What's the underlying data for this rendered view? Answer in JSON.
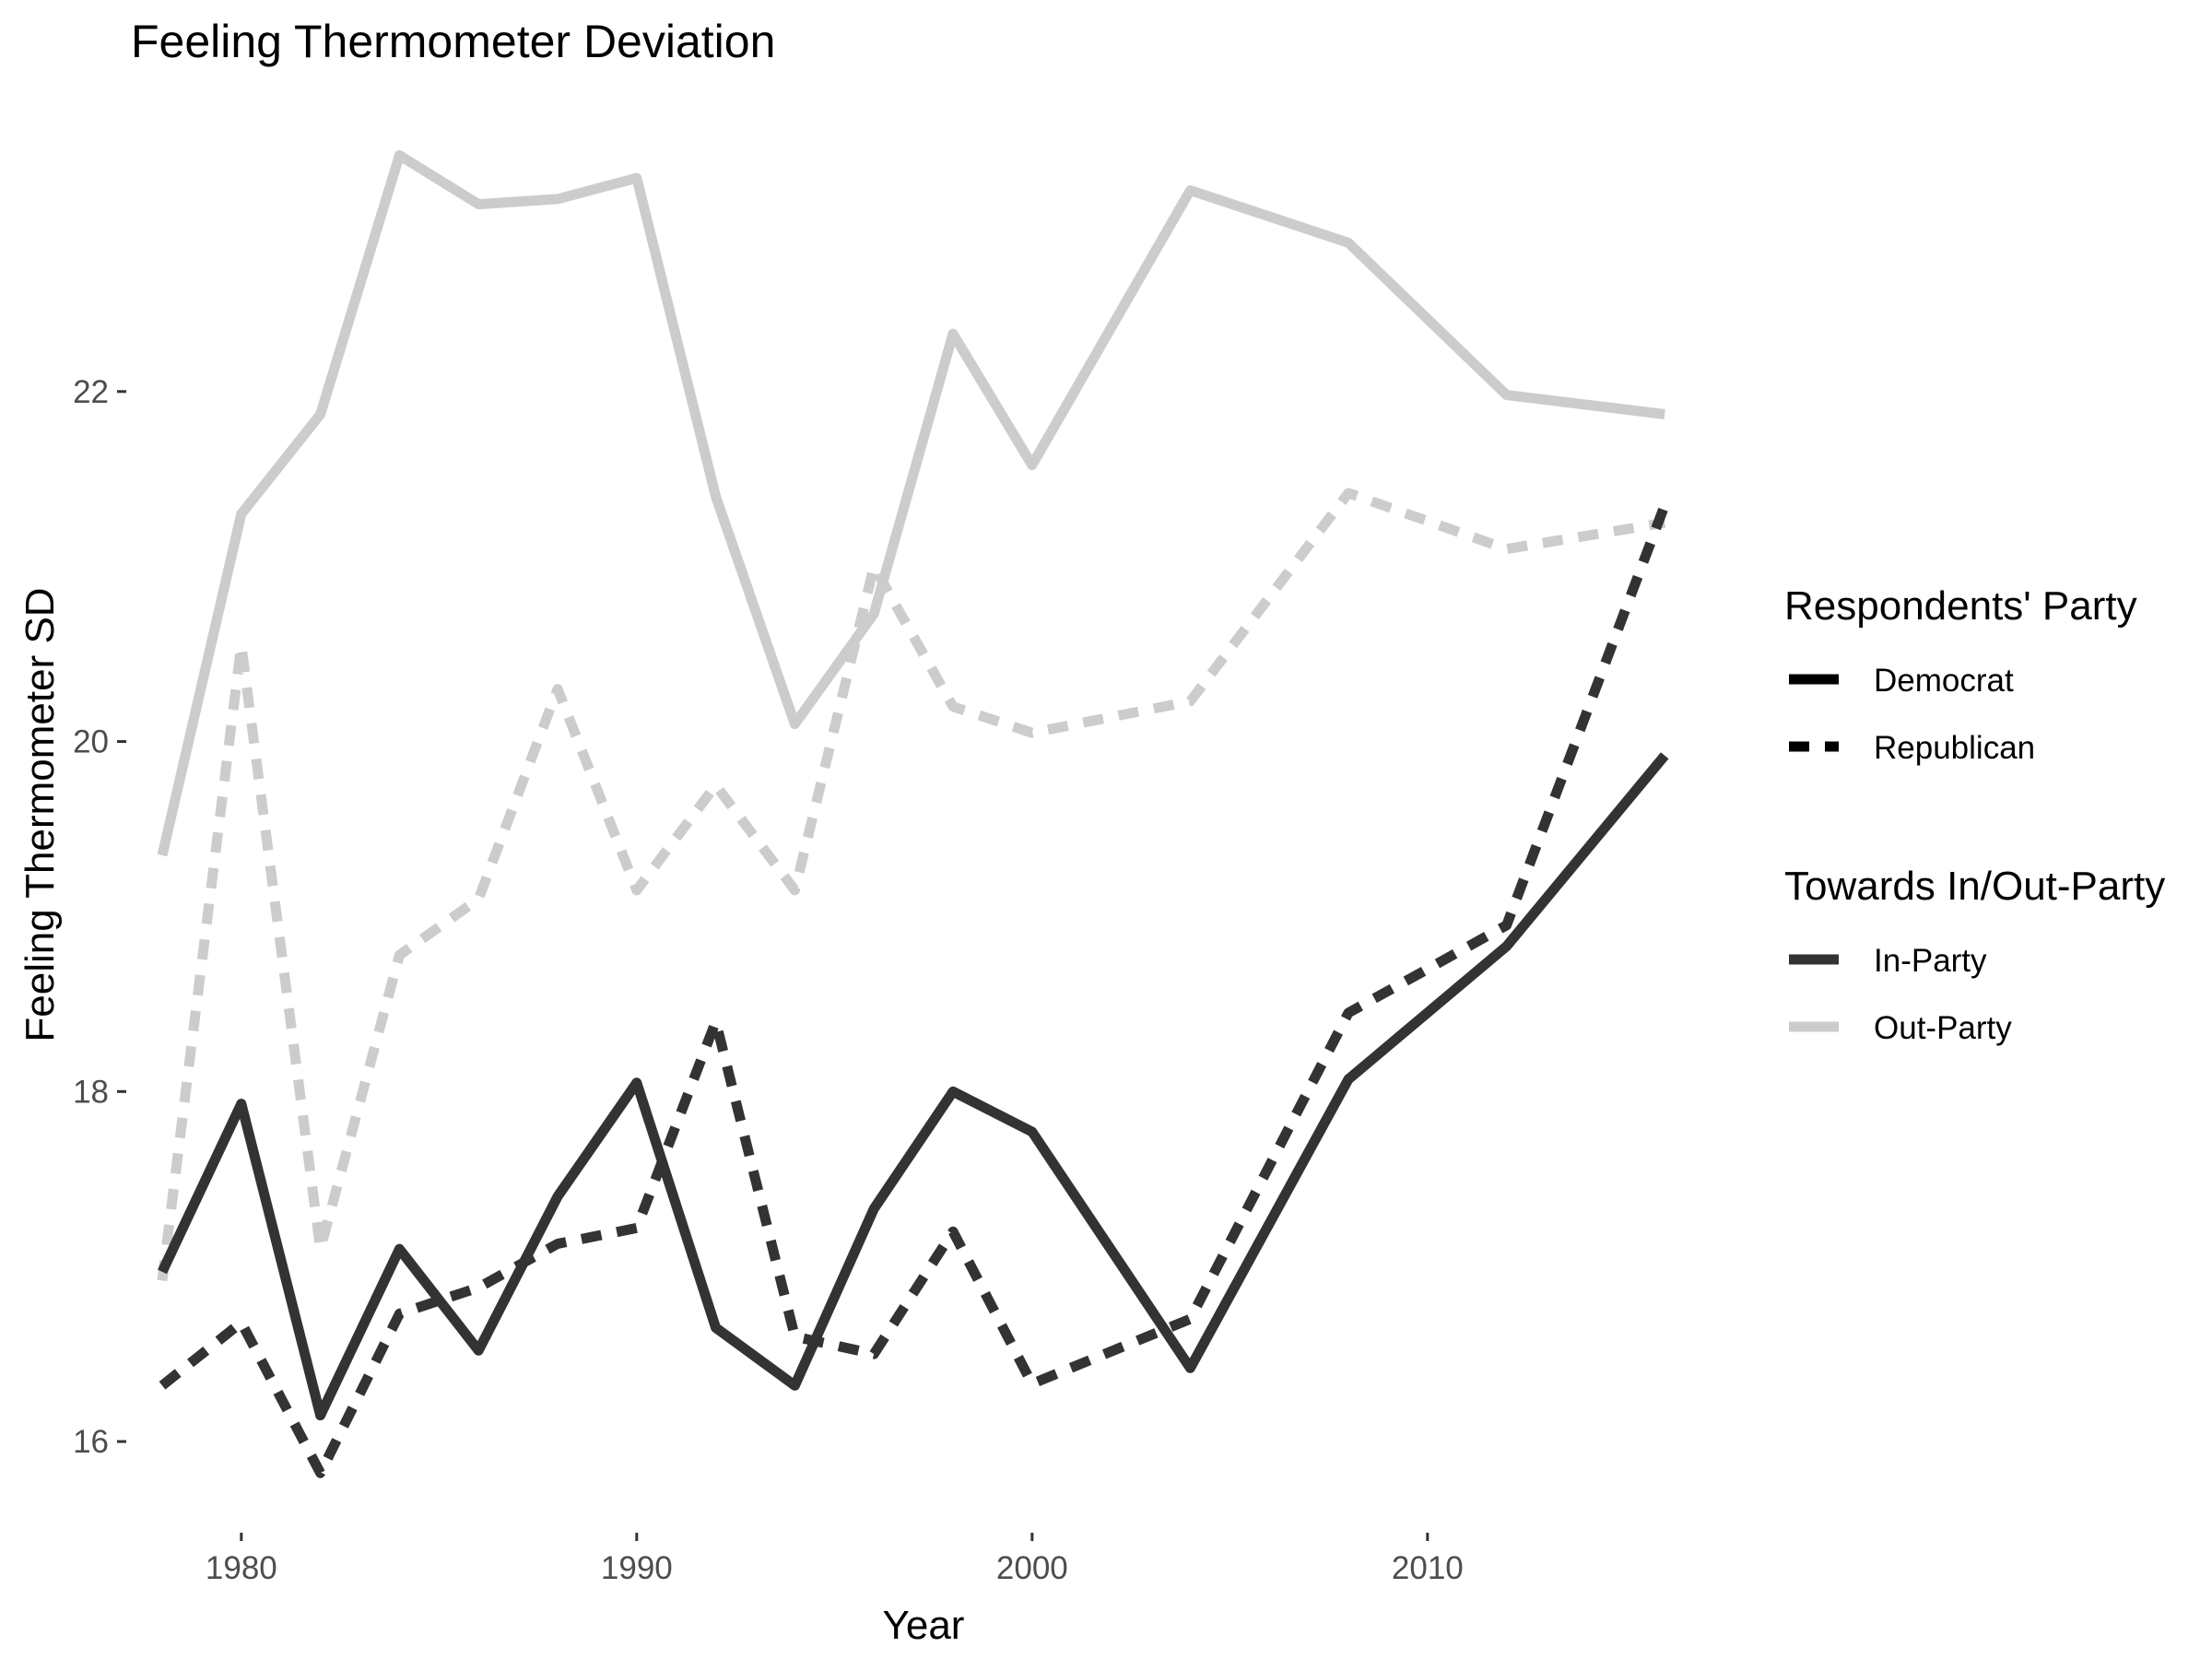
{
  "chart_data": {
    "type": "line",
    "title": "Feeling Thermometer Deviation",
    "xlabel": "Year",
    "ylabel": "Feeling Thermometer SD",
    "xlim": [
      1977.3,
      2017.3
    ],
    "ylim": [
      15.6,
      23.5
    ],
    "x_ticks": [
      1980,
      1990,
      2000,
      2010
    ],
    "y_ticks": [
      16,
      18,
      20,
      22
    ],
    "grid": false,
    "legend_position": "right",
    "legends": [
      {
        "title": "Respondents' Party",
        "entries": [
          {
            "label": "Democrat",
            "linetype": "solid",
            "color": "#000000"
          },
          {
            "label": "Republican",
            "linetype": "dashed",
            "color": "#000000"
          }
        ]
      },
      {
        "title": "Towards In/Out-Party",
        "entries": [
          {
            "label": "In-Party",
            "linetype": "solid",
            "color": "#333333"
          },
          {
            "label": "Out-Party",
            "linetype": "solid",
            "color": "#cccccc"
          }
        ]
      }
    ],
    "series": [
      {
        "party": "Democrat",
        "target": "Out-Party",
        "color": "#cccccc",
        "linetype": "solid",
        "points": [
          [
            1978,
            19.35
          ],
          [
            1980,
            21.3
          ],
          [
            1982,
            21.87
          ],
          [
            1984,
            23.35
          ],
          [
            1986,
            23.07
          ],
          [
            1988,
            23.1
          ],
          [
            1990,
            23.22
          ],
          [
            1992,
            21.4
          ],
          [
            1994,
            20.1
          ],
          [
            1996,
            20.73
          ],
          [
            1998,
            22.33
          ],
          [
            2000,
            21.58
          ],
          [
            2004,
            23.15
          ],
          [
            2008,
            22.85
          ],
          [
            2012,
            21.98
          ],
          [
            2016,
            21.87
          ]
        ]
      },
      {
        "party": "Republican",
        "target": "Out-Party",
        "color": "#cccccc",
        "linetype": "dashed",
        "points": [
          [
            1978,
            16.92
          ],
          [
            1980,
            20.55
          ],
          [
            1982,
            17.1
          ],
          [
            1984,
            18.78
          ],
          [
            1986,
            19.1
          ],
          [
            1988,
            20.3
          ],
          [
            1990,
            19.15
          ],
          [
            1992,
            19.75
          ],
          [
            1994,
            19.15
          ],
          [
            1996,
            21.0
          ],
          [
            1998,
            20.2
          ],
          [
            2000,
            20.05
          ],
          [
            2004,
            20.23
          ],
          [
            2008,
            21.42
          ],
          [
            2012,
            21.1
          ],
          [
            2016,
            21.25
          ]
        ]
      },
      {
        "party": "Democrat",
        "target": "In-Party",
        "color": "#333333",
        "linetype": "solid",
        "points": [
          [
            1978,
            16.97
          ],
          [
            1980,
            17.93
          ],
          [
            1982,
            16.15
          ],
          [
            1984,
            17.1
          ],
          [
            1986,
            16.52
          ],
          [
            1988,
            17.4
          ],
          [
            1990,
            18.05
          ],
          [
            1992,
            16.65
          ],
          [
            1994,
            16.32
          ],
          [
            1996,
            17.33
          ],
          [
            1998,
            18.0
          ],
          [
            2000,
            17.77
          ],
          [
            2004,
            16.42
          ],
          [
            2008,
            18.07
          ],
          [
            2012,
            18.83
          ],
          [
            2016,
            19.92
          ]
        ]
      },
      {
        "party": "Republican",
        "target": "In-Party",
        "color": "#333333",
        "linetype": "dashed",
        "points": [
          [
            1978,
            16.32
          ],
          [
            1980,
            16.68
          ],
          [
            1982,
            15.82
          ],
          [
            1984,
            16.73
          ],
          [
            1986,
            16.88
          ],
          [
            1988,
            17.13
          ],
          [
            1990,
            17.22
          ],
          [
            1992,
            18.4
          ],
          [
            1994,
            16.6
          ],
          [
            1996,
            16.5
          ],
          [
            1998,
            17.2
          ],
          [
            2000,
            16.33
          ],
          [
            2004,
            16.7
          ],
          [
            2008,
            18.45
          ],
          [
            2012,
            18.95
          ],
          [
            2016,
            21.35
          ]
        ]
      }
    ]
  }
}
